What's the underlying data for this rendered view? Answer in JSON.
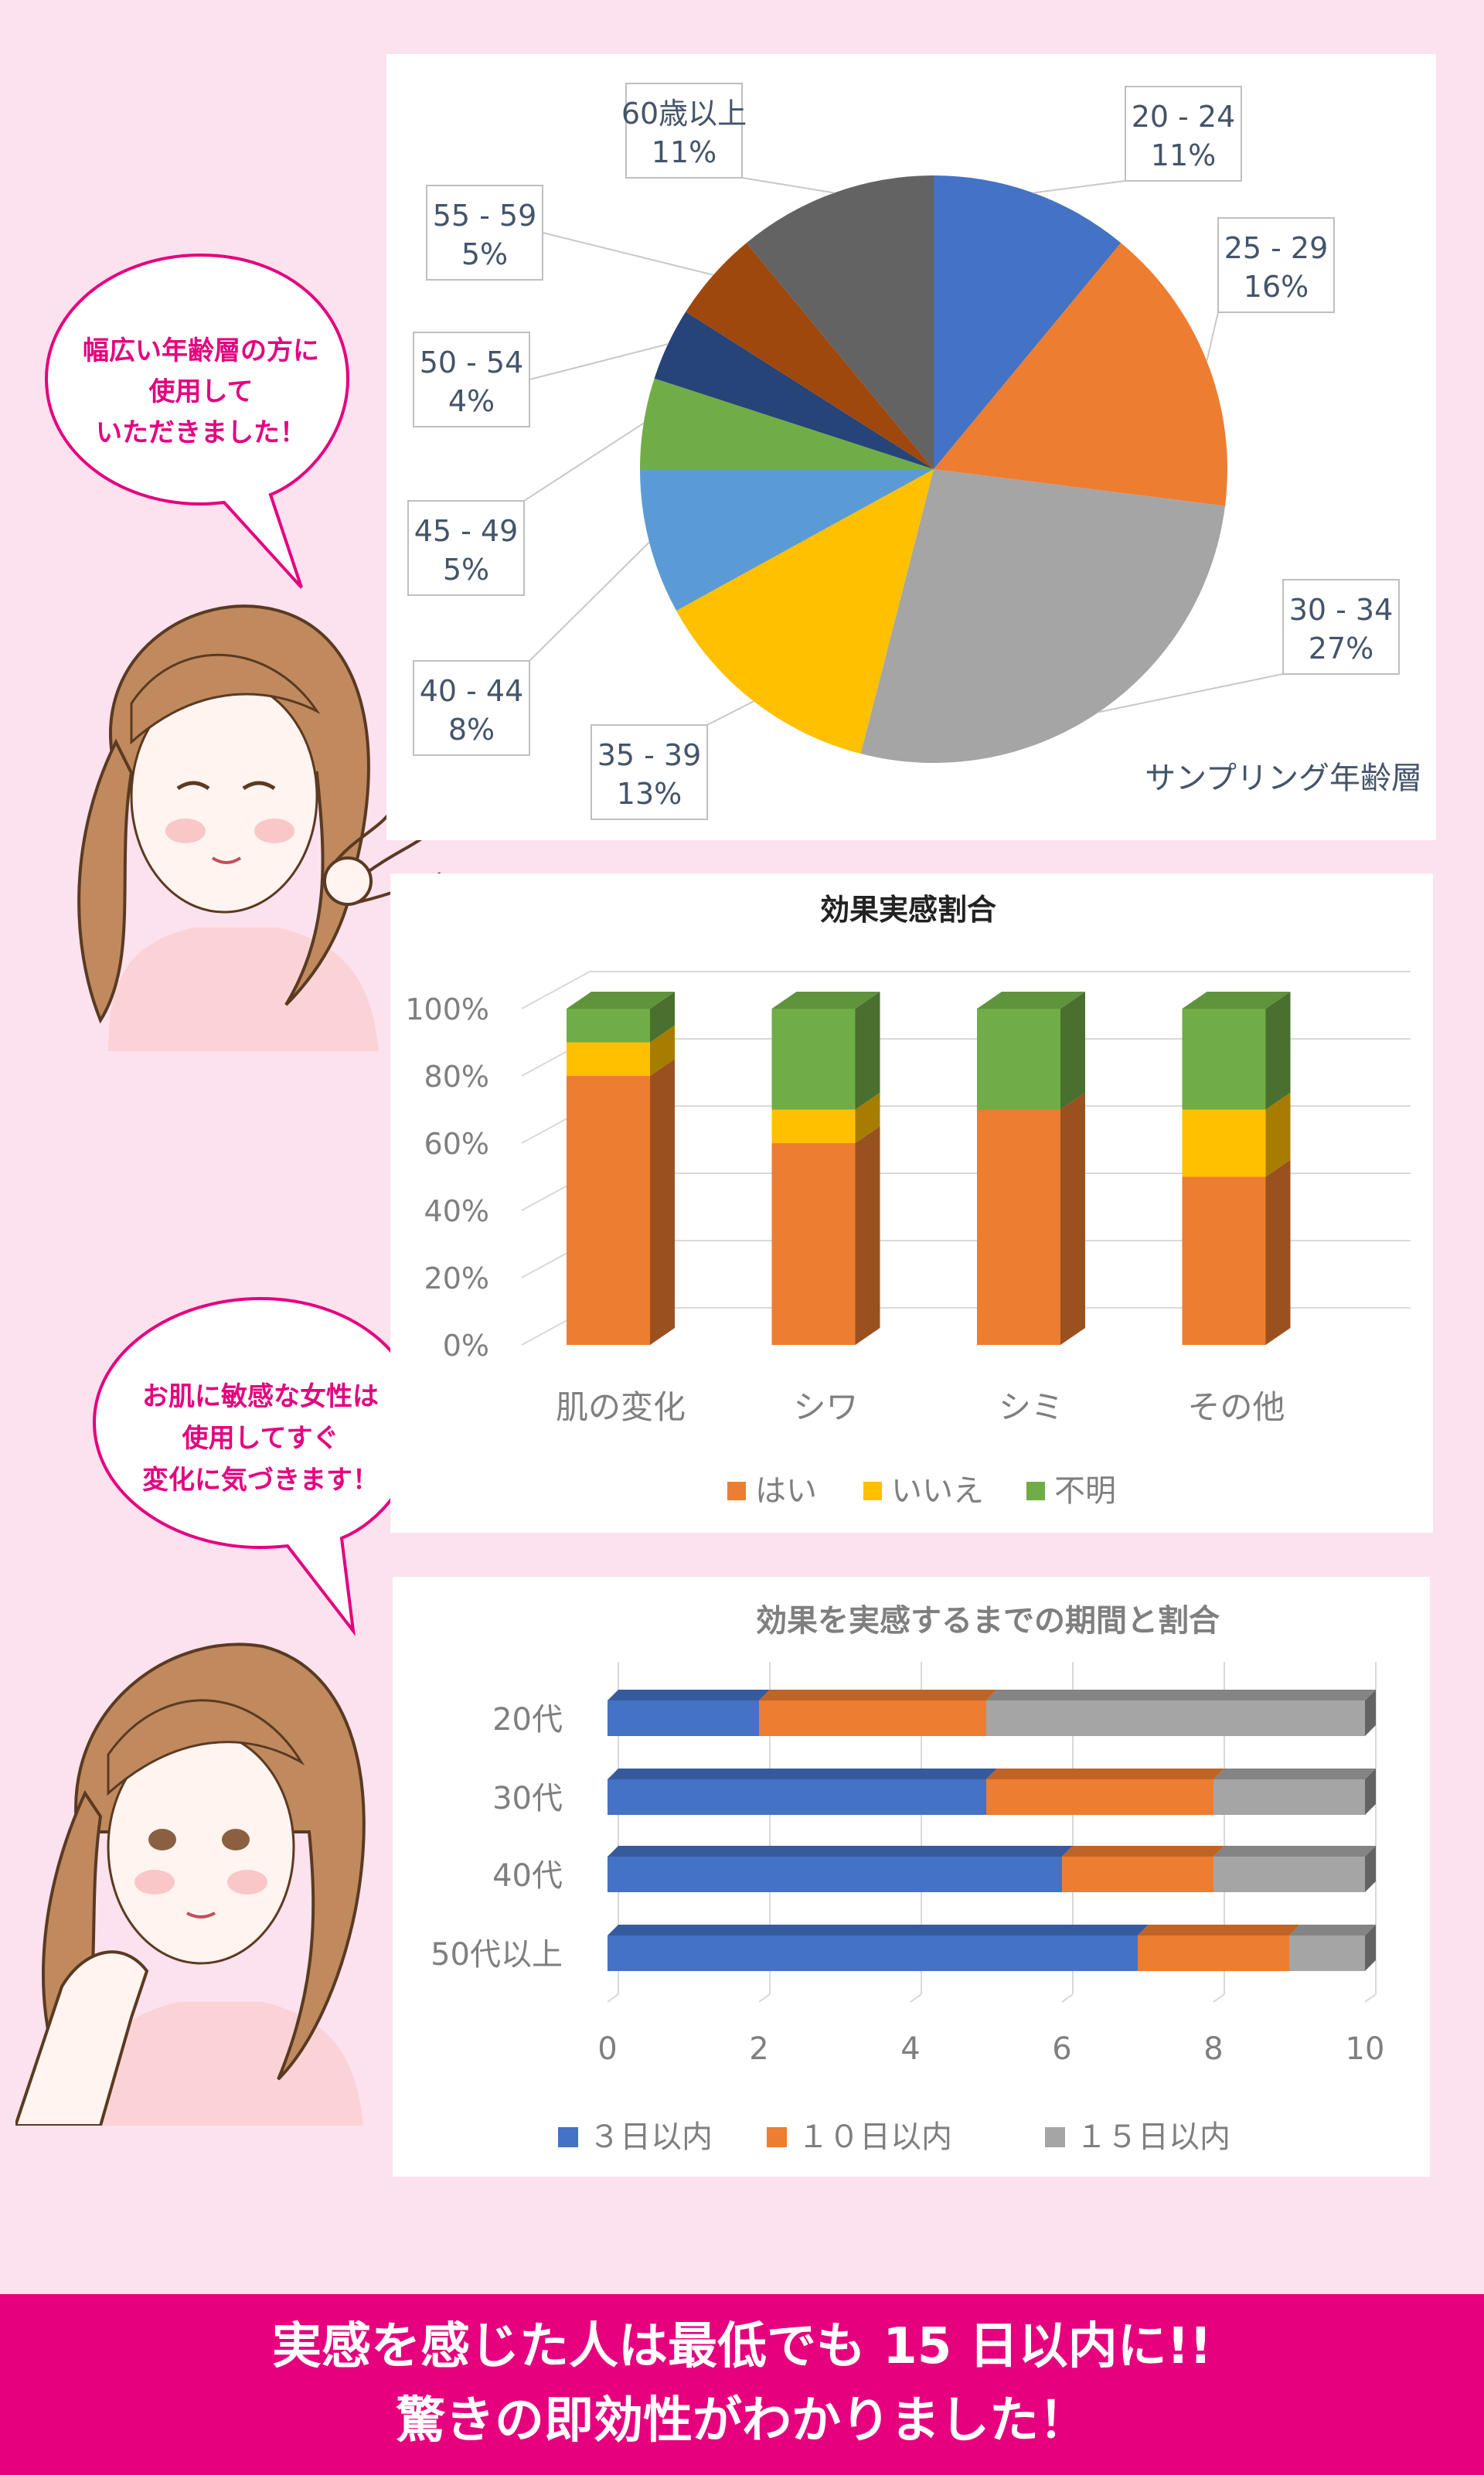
{
  "colors": {
    "background": "#fce1ee",
    "accent": "#e6007e",
    "bubble_border": "#e4007f",
    "blue": "#4472c4",
    "orange": "#ed7d31",
    "gray": "#a5a5a5",
    "yellow": "#ffc000",
    "green": "#70ad47",
    "navy": "#264478",
    "brown": "#9e480e",
    "darkgray": "#636363",
    "lightblue": "#5b9bd5"
  },
  "bubbles": [
    {
      "lines": [
        "幅広い年齢層の方に",
        "使用して",
        "いただきました！"
      ]
    },
    {
      "lines": [
        "お肌に敏感な女性は",
        "使用してすぐ",
        "変化に気づきます！"
      ]
    }
  ],
  "chart_data": [
    {
      "type": "pie",
      "title": "サンプリング年齢層",
      "categories": [
        "20 - 24",
        "25 - 29",
        "30 - 34",
        "35 - 39",
        "40 - 44",
        "45 - 49",
        "50 - 54",
        "55 - 59",
        "60歳以上"
      ],
      "values": [
        11,
        16,
        27,
        13,
        8,
        5,
        4,
        5,
        11
      ],
      "labels": [
        "11%",
        "16%",
        "27%",
        "13%",
        "8%",
        "5%",
        "4%",
        "5%",
        "11%"
      ],
      "colors": [
        "#4472c4",
        "#ed7d31",
        "#a5a5a5",
        "#ffc000",
        "#5b9bd5",
        "#70ad47",
        "#264478",
        "#9e480e",
        "#636363"
      ]
    },
    {
      "type": "bar",
      "stacked": true,
      "title": "効果実感割合",
      "categories": [
        "肌の変化",
        "シワ",
        "シミ",
        "その他"
      ],
      "series": [
        {
          "name": "はい",
          "values": [
            80,
            60,
            70,
            50
          ],
          "color": "#ed7d31"
        },
        {
          "name": "いいえ",
          "values": [
            10,
            10,
            0,
            20
          ],
          "color": "#ffc000"
        },
        {
          "name": "不明",
          "values": [
            10,
            30,
            30,
            30
          ],
          "color": "#70ad47"
        }
      ],
      "yticks": [
        "0%",
        "20%",
        "40%",
        "60%",
        "80%",
        "100%"
      ],
      "ylim": [
        0,
        100
      ],
      "legend": "bottom"
    },
    {
      "type": "bar",
      "orientation": "horizontal",
      "stacked": true,
      "title": "効果を実感するまでの期間と割合",
      "categories": [
        "20代",
        "30代",
        "40代",
        "50代以上"
      ],
      "series": [
        {
          "name": "３日以内",
          "values": [
            2,
            5,
            6,
            7
          ],
          "color": "#4472c4"
        },
        {
          "name": "１０日以内",
          "values": [
            3,
            3,
            2,
            2
          ],
          "color": "#ed7d31"
        },
        {
          "name": "１５日以内",
          "values": [
            5,
            2,
            2,
            1
          ],
          "color": "#a5a5a5"
        }
      ],
      "xticks": [
        "0",
        "2",
        "4",
        "6",
        "8",
        "10"
      ],
      "xlim": [
        0,
        10
      ],
      "legend": "bottom"
    }
  ],
  "banner": {
    "line1": "実感を感じた人は最低でも 15 日以内に!!",
    "line2": "驚きの即効性がわかりました！"
  }
}
